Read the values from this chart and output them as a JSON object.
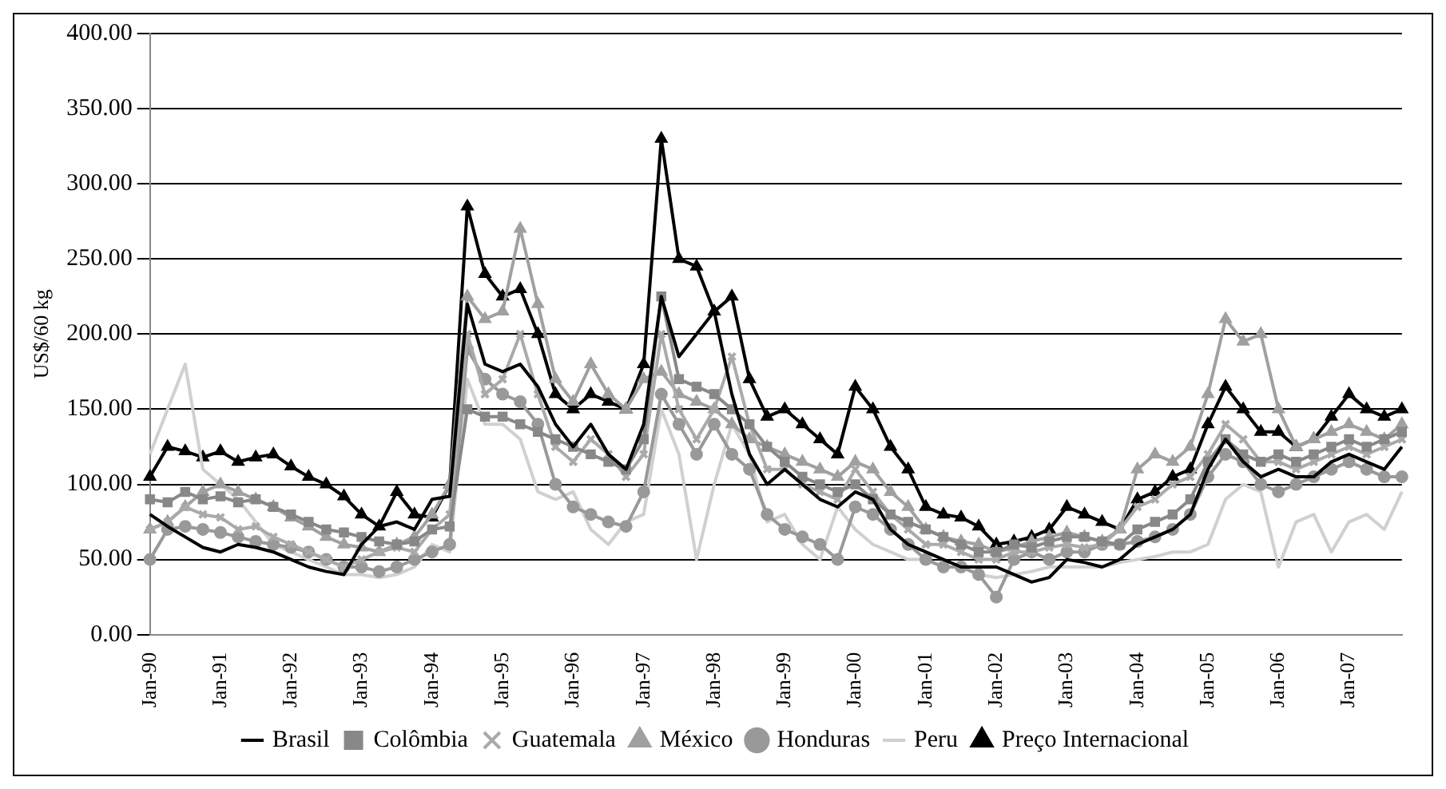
{
  "chart_data": {
    "type": "line",
    "ylabel": "US$/60 kg",
    "categories": [
      "Jan-90",
      null,
      null,
      null,
      "Jan-91",
      null,
      null,
      null,
      "Jan-92",
      null,
      null,
      null,
      "Jan-93",
      null,
      null,
      null,
      "Jan-94",
      null,
      null,
      null,
      "Jan-95",
      null,
      null,
      null,
      "Jan-96",
      null,
      null,
      null,
      "Jan-97",
      null,
      null,
      null,
      "Jan-98",
      null,
      null,
      null,
      "Jan-99",
      null,
      null,
      null,
      "Jan-00",
      null,
      null,
      null,
      "Jan-01",
      null,
      null,
      null,
      "Jan-02",
      null,
      null,
      null,
      "Jan-03",
      null,
      null,
      null,
      "Jan-04",
      null,
      null,
      null,
      "Jan-05",
      null,
      null,
      null,
      "Jan-06",
      null,
      null,
      null,
      "Jan-07",
      null,
      null,
      null
    ],
    "ylim": [
      0,
      400
    ],
    "yticks": [
      {
        "value": 0,
        "label": "0.00"
      },
      {
        "value": 50,
        "label": "50.00"
      },
      {
        "value": 100,
        "label": "100.00"
      },
      {
        "value": 150,
        "label": "150.00"
      },
      {
        "value": 200,
        "label": "200.00"
      },
      {
        "value": 250,
        "label": "250.00"
      },
      {
        "value": 300,
        "label": "300.00"
      },
      {
        "value": 350,
        "label": "350.00"
      },
      {
        "value": 400,
        "label": "400.00"
      }
    ],
    "grid": "y",
    "legend": "bottom",
    "line_style": "solid",
    "series": [
      {
        "name": "Brasil",
        "color": "#000000",
        "marker": "none",
        "values": [
          80,
          72,
          65,
          58,
          55,
          60,
          58,
          55,
          50,
          45,
          42,
          40,
          60,
          72,
          75,
          70,
          90,
          92,
          220,
          180,
          175,
          180,
          165,
          140,
          125,
          140,
          120,
          110,
          140,
          225,
          185,
          200,
          215,
          160,
          120,
          100,
          110,
          100,
          90,
          85,
          95,
          90,
          70,
          60,
          55,
          50,
          45,
          45,
          45,
          40,
          35,
          38,
          50,
          48,
          45,
          50,
          60,
          65,
          70,
          80,
          110,
          130,
          115,
          105,
          110,
          105,
          105,
          115,
          120,
          115,
          110,
          125
        ]
      },
      {
        "name": "Colômbia",
        "color": "#888888",
        "marker": "square",
        "values": [
          90,
          88,
          95,
          90,
          92,
          88,
          90,
          85,
          80,
          75,
          70,
          68,
          65,
          62,
          60,
          62,
          70,
          72,
          150,
          145,
          145,
          140,
          135,
          130,
          125,
          120,
          115,
          110,
          130,
          225,
          170,
          165,
          160,
          150,
          140,
          125,
          115,
          105,
          100,
          95,
          100,
          90,
          80,
          75,
          70,
          65,
          60,
          55,
          55,
          60,
          58,
          62,
          65,
          65,
          62,
          60,
          70,
          75,
          80,
          90,
          115,
          130,
          120,
          115,
          120,
          115,
          120,
          125,
          130,
          125,
          130,
          135
        ]
      },
      {
        "name": "Guatemala",
        "color": "#aaaaaa",
        "marker": "cross",
        "values": [
          70,
          75,
          85,
          80,
          78,
          70,
          72,
          65,
          60,
          55,
          50,
          45,
          50,
          55,
          58,
          55,
          70,
          80,
          200,
          160,
          170,
          200,
          160,
          125,
          115,
          130,
          120,
          105,
          120,
          200,
          150,
          130,
          150,
          185,
          140,
          110,
          110,
          100,
          95,
          90,
          110,
          95,
          80,
          70,
          60,
          60,
          55,
          50,
          50,
          55,
          55,
          58,
          60,
          58,
          60,
          70,
          85,
          90,
          100,
          105,
          120,
          140,
          130,
          115,
          115,
          110,
          115,
          120,
          125,
          120,
          125,
          130
        ]
      },
      {
        "name": "México",
        "color": "#a0a0a0",
        "marker": "triangle",
        "values": [
          70,
          75,
          85,
          95,
          100,
          95,
          90,
          85,
          78,
          72,
          65,
          60,
          58,
          55,
          60,
          65,
          80,
          100,
          225,
          210,
          215,
          270,
          220,
          170,
          155,
          180,
          160,
          150,
          170,
          175,
          160,
          155,
          150,
          140,
          130,
          125,
          120,
          115,
          110,
          105,
          115,
          110,
          95,
          85,
          70,
          65,
          62,
          60,
          55,
          58,
          62,
          65,
          68,
          65,
          62,
          70,
          110,
          120,
          115,
          125,
          160,
          210,
          195,
          200,
          150,
          125,
          130,
          135,
          140,
          135,
          130,
          140
        ]
      },
      {
        "name": "Honduras",
        "color": "#999999",
        "marker": "circle",
        "values": [
          50,
          70,
          72,
          70,
          68,
          65,
          62,
          60,
          58,
          55,
          50,
          45,
          45,
          42,
          45,
          50,
          55,
          60,
          190,
          170,
          160,
          155,
          140,
          100,
          85,
          80,
          75,
          72,
          95,
          160,
          140,
          120,
          140,
          120,
          110,
          80,
          70,
          65,
          60,
          50,
          85,
          80,
          70,
          60,
          50,
          45,
          45,
          40,
          25,
          50,
          55,
          50,
          55,
          55,
          60,
          60,
          62,
          65,
          70,
          80,
          105,
          120,
          115,
          100,
          95,
          100,
          105,
          110,
          115,
          110,
          105,
          105
        ]
      },
      {
        "name": "Peru",
        "color": "#d0d0d0",
        "marker": "none",
        "values": [
          120,
          150,
          180,
          110,
          100,
          90,
          75,
          60,
          55,
          50,
          45,
          40,
          40,
          38,
          40,
          45,
          60,
          55,
          170,
          140,
          140,
          130,
          95,
          90,
          95,
          70,
          60,
          75,
          80,
          150,
          120,
          50,
          100,
          140,
          120,
          75,
          80,
          60,
          50,
          85,
          70,
          60,
          55,
          50,
          50,
          45,
          45,
          40,
          38,
          40,
          42,
          45,
          45,
          45,
          45,
          48,
          50,
          52,
          55,
          55,
          60,
          90,
          100,
          95,
          45,
          75,
          80,
          55,
          75,
          80,
          70,
          95
        ]
      },
      {
        "name": "Preço Internacional",
        "color": "#000000",
        "marker": "triangle",
        "values": [
          105,
          125,
          122,
          118,
          122,
          115,
          118,
          120,
          112,
          105,
          100,
          92,
          80,
          72,
          95,
          80,
          78,
          100,
          285,
          240,
          225,
          230,
          200,
          160,
          150,
          160,
          155,
          150,
          180,
          330,
          250,
          245,
          215,
          225,
          170,
          145,
          150,
          140,
          130,
          120,
          165,
          150,
          125,
          110,
          85,
          80,
          78,
          72,
          60,
          62,
          65,
          70,
          85,
          80,
          75,
          70,
          90,
          95,
          105,
          110,
          140,
          165,
          150,
          135,
          135,
          125,
          130,
          145,
          160,
          150,
          145,
          150
        ]
      }
    ]
  }
}
